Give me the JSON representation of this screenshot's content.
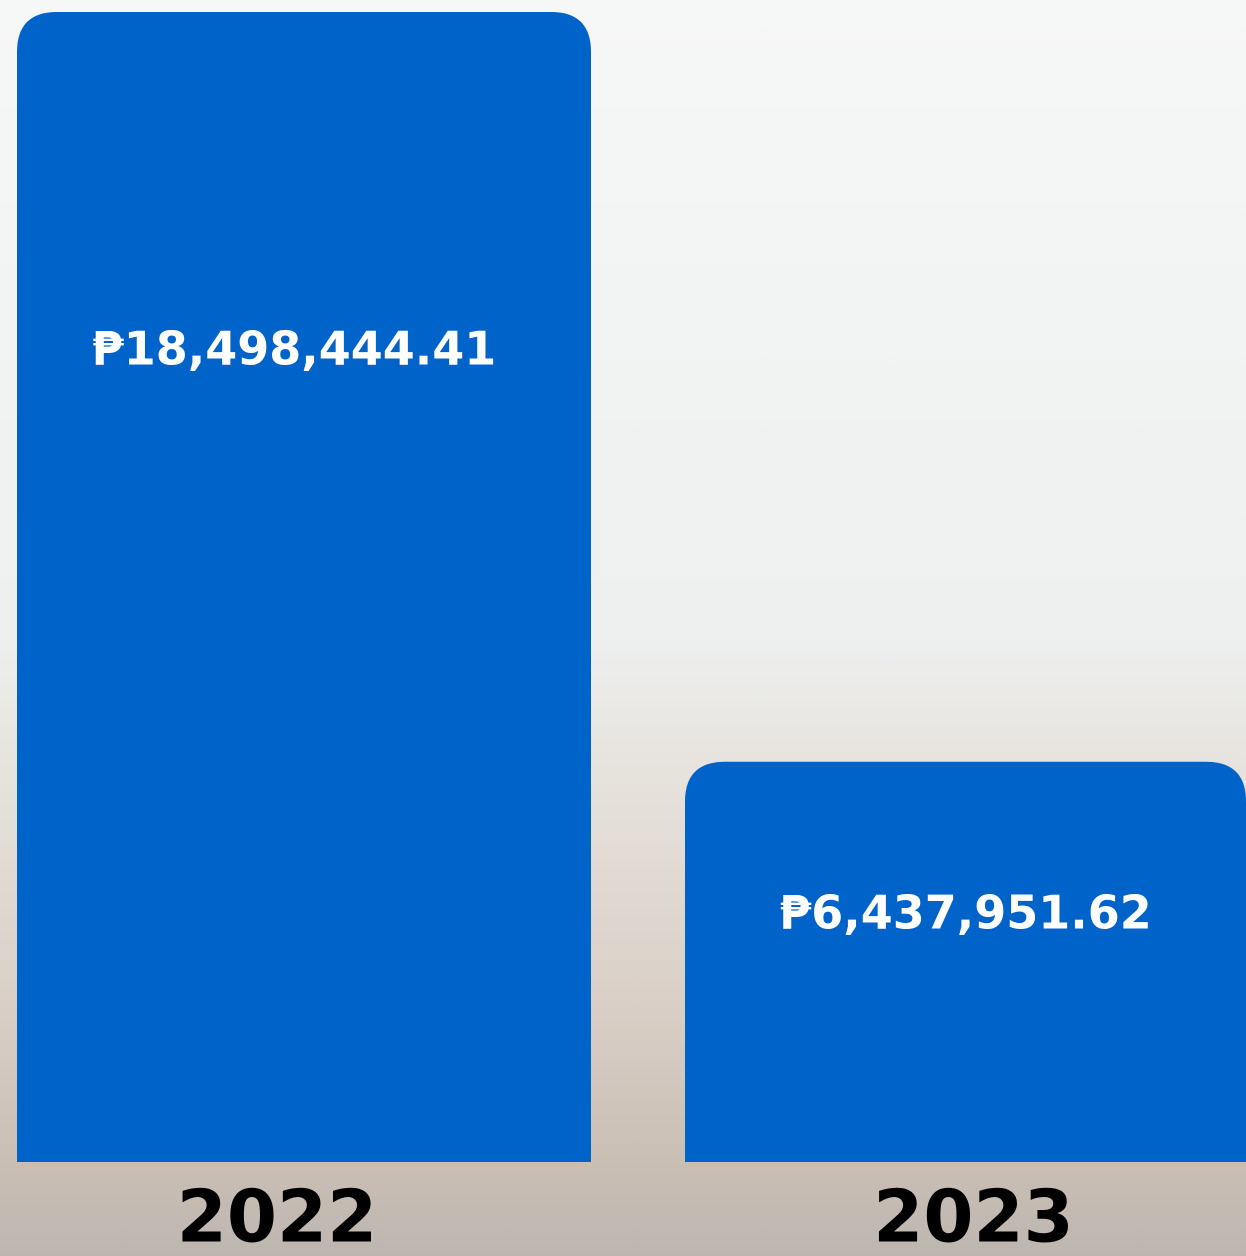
{
  "chart_data": {
    "type": "bar",
    "categories": [
      "2022",
      "2023"
    ],
    "values": [
      18498444.41,
      6437951.62
    ],
    "value_labels": [
      "₱18,498,444.41",
      "₱6,437,951.62"
    ],
    "color": "#0063c9"
  }
}
